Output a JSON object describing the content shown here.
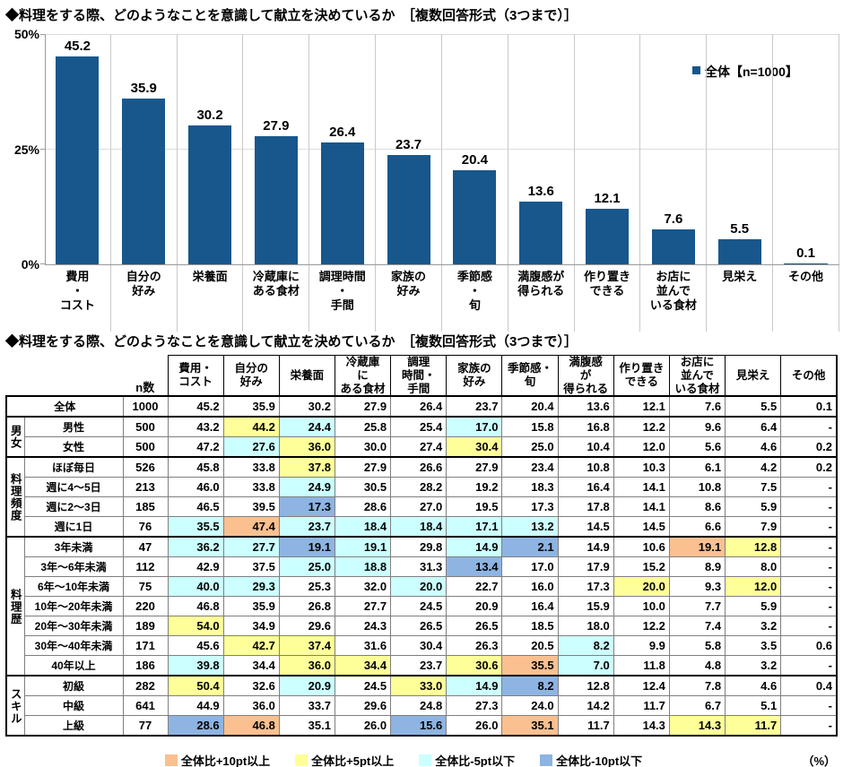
{
  "chart_data": {
    "type": "bar",
    "title": "◆料理をする際、どのようなことを意識して献立を決めているか　［複数回答形式（3つまで）］",
    "legend": "全体【n=1000】",
    "bar_color": "#17578c",
    "ylim": [
      0,
      50
    ],
    "yticks": [
      50,
      25,
      0
    ],
    "grid": "vertical category separators, light horizontal lines at 25% and 50%",
    "categories": [
      "費用・コスト",
      "自分の好み",
      "栄養面",
      "冷蔵庫にある食材",
      "調理時間・手間",
      "家族の好み",
      "季節感・旬",
      "満腹感が得られる",
      "作り置きできる",
      "お店に並んでいる食材",
      "見栄え",
      "その他"
    ],
    "category_lines": [
      [
        "費用",
        "・",
        "コスト"
      ],
      [
        "自分の",
        "好み"
      ],
      [
        "栄養面"
      ],
      [
        "冷蔵庫に",
        "ある食材"
      ],
      [
        "調理時間",
        "・",
        "手間"
      ],
      [
        "家族の",
        "好み"
      ],
      [
        "季節感",
        "・",
        "旬"
      ],
      [
        "満腹感が",
        "得られる"
      ],
      [
        "作り置き",
        "できる"
      ],
      [
        "お店に",
        "並んで",
        "いる食材"
      ],
      [
        "見栄え"
      ],
      [
        "その他"
      ]
    ],
    "values": [
      45.2,
      35.9,
      30.2,
      27.9,
      26.4,
      23.7,
      20.4,
      13.6,
      12.1,
      7.6,
      5.5,
      0.1
    ]
  },
  "table": {
    "title": "◆料理をする際、どのようなことを意識して献立を決めているか　［複数回答形式（3つまで）］",
    "n_header": "n数",
    "col_headers": [
      [
        "費用・",
        "コスト"
      ],
      [
        "自分の",
        "好み"
      ],
      [
        "栄養面"
      ],
      [
        "冷蔵庫",
        "に",
        "ある食材"
      ],
      [
        "調理",
        "時間・",
        "手間"
      ],
      [
        "家族の",
        "好み"
      ],
      [
        "季節感・",
        "旬"
      ],
      [
        "満腹感",
        "が",
        "得られる"
      ],
      [
        "作り置き",
        "できる"
      ],
      [
        "お店に",
        "並んで",
        "いる食材"
      ],
      [
        "見栄え"
      ],
      [
        "その他"
      ]
    ],
    "groups": [
      {
        "label": "",
        "rows": [
          {
            "label": "全体",
            "n": "1000",
            "values": [
              "45.2",
              "35.9",
              "30.2",
              "27.9",
              "26.4",
              "23.7",
              "20.4",
              "13.6",
              "12.1",
              "7.6",
              "5.5",
              "0.1"
            ],
            "marks": [
              "",
              "",
              "",
              "",
              "",
              "",
              "",
              "",
              "",
              "",
              "",
              ""
            ]
          }
        ]
      },
      {
        "label": "男女",
        "rows": [
          {
            "label": "男性",
            "n": "500",
            "values": [
              "43.2",
              "44.2",
              "24.4",
              "25.8",
              "25.4",
              "17.0",
              "15.8",
              "16.8",
              "12.2",
              "9.6",
              "6.4",
              "-"
            ],
            "marks": [
              "",
              "y",
              "c",
              "",
              "",
              "c",
              "",
              "",
              "",
              "",
              "",
              ""
            ]
          },
          {
            "label": "女性",
            "n": "500",
            "values": [
              "47.2",
              "27.6",
              "36.0",
              "30.0",
              "27.4",
              "30.4",
              "25.0",
              "10.4",
              "12.0",
              "5.6",
              "4.6",
              "0.2"
            ],
            "marks": [
              "",
              "c",
              "y",
              "",
              "",
              "y",
              "",
              "",
              "",
              "",
              "",
              ""
            ]
          }
        ]
      },
      {
        "label": "料理頻度",
        "rows": [
          {
            "label": "ほぼ毎日",
            "n": "526",
            "values": [
              "45.8",
              "33.8",
              "37.8",
              "27.9",
              "26.6",
              "27.9",
              "23.4",
              "10.8",
              "10.3",
              "6.1",
              "4.2",
              "0.2"
            ],
            "marks": [
              "",
              "",
              "y",
              "",
              "",
              "",
              "",
              "",
              "",
              "",
              "",
              ""
            ]
          },
          {
            "label": "週に4〜5日",
            "n": "213",
            "values": [
              "46.0",
              "33.8",
              "24.9",
              "30.5",
              "28.2",
              "19.2",
              "18.3",
              "16.4",
              "14.1",
              "10.8",
              "7.5",
              "-"
            ],
            "marks": [
              "",
              "",
              "c",
              "",
              "",
              "",
              "",
              "",
              "",
              "",
              "",
              ""
            ]
          },
          {
            "label": "週に2〜3日",
            "n": "185",
            "values": [
              "46.5",
              "39.5",
              "17.3",
              "28.6",
              "27.0",
              "19.5",
              "17.3",
              "17.8",
              "14.1",
              "8.6",
              "5.9",
              "-"
            ],
            "marks": [
              "",
              "",
              "b",
              "",
              "",
              "",
              "",
              "",
              "",
              "",
              "",
              ""
            ]
          },
          {
            "label": "週に1日",
            "n": "76",
            "values": [
              "35.5",
              "47.4",
              "23.7",
              "18.4",
              "18.4",
              "17.1",
              "13.2",
              "14.5",
              "14.5",
              "6.6",
              "7.9",
              "-"
            ],
            "marks": [
              "c",
              "o",
              "c",
              "c",
              "c",
              "c",
              "c",
              "",
              "",
              "",
              "",
              ""
            ]
          }
        ]
      },
      {
        "label": "料理歴",
        "rows": [
          {
            "label": "3年未満",
            "n": "47",
            "values": [
              "36.2",
              "27.7",
              "19.1",
              "19.1",
              "29.8",
              "14.9",
              "2.1",
              "14.9",
              "10.6",
              "19.1",
              "12.8",
              "-"
            ],
            "marks": [
              "c",
              "c",
              "b",
              "c",
              "",
              "c",
              "b",
              "",
              "",
              "o",
              "y",
              ""
            ]
          },
          {
            "label": "3年〜6年未満",
            "n": "112",
            "values": [
              "42.9",
              "37.5",
              "25.0",
              "18.8",
              "31.3",
              "13.4",
              "17.0",
              "17.9",
              "15.2",
              "8.9",
              "8.0",
              "-"
            ],
            "marks": [
              "",
              "",
              "c",
              "c",
              "",
              "b",
              "",
              "",
              "",
              "",
              "",
              ""
            ]
          },
          {
            "label": "6年〜10年未満",
            "n": "75",
            "values": [
              "40.0",
              "29.3",
              "25.3",
              "32.0",
              "20.0",
              "22.7",
              "16.0",
              "17.3",
              "20.0",
              "9.3",
              "12.0",
              "-"
            ],
            "marks": [
              "c",
              "c",
              "",
              "",
              "c",
              "",
              "",
              "",
              "y",
              "",
              "y",
              ""
            ]
          },
          {
            "label": "10年〜20年未満",
            "n": "220",
            "values": [
              "46.8",
              "35.9",
              "26.8",
              "27.7",
              "24.5",
              "20.9",
              "16.4",
              "15.9",
              "10.0",
              "7.7",
              "5.9",
              "-"
            ],
            "marks": [
              "",
              "",
              "",
              "",
              "",
              "",
              "",
              "",
              "",
              "",
              "",
              ""
            ]
          },
          {
            "label": "20年〜30年未満",
            "n": "189",
            "values": [
              "54.0",
              "34.9",
              "29.6",
              "24.3",
              "26.5",
              "26.5",
              "18.5",
              "18.0",
              "12.2",
              "7.4",
              "3.2",
              "-"
            ],
            "marks": [
              "y",
              "",
              "",
              "",
              "",
              "",
              "",
              "",
              "",
              "",
              "",
              ""
            ]
          },
          {
            "label": "30年〜40年未満",
            "n": "171",
            "values": [
              "45.6",
              "42.7",
              "37.4",
              "31.6",
              "30.4",
              "26.3",
              "20.5",
              "8.2",
              "9.9",
              "5.8",
              "3.5",
              "0.6"
            ],
            "marks": [
              "",
              "y",
              "y",
              "",
              "",
              "",
              "",
              "c",
              "",
              "",
              "",
              ""
            ]
          },
          {
            "label": "40年以上",
            "n": "186",
            "values": [
              "39.8",
              "34.4",
              "36.0",
              "34.4",
              "23.7",
              "30.6",
              "35.5",
              "7.0",
              "11.8",
              "4.8",
              "3.2",
              "-"
            ],
            "marks": [
              "c",
              "",
              "y",
              "y",
              "",
              "y",
              "o",
              "c",
              "",
              "",
              "",
              ""
            ]
          }
        ]
      },
      {
        "label": "スキル",
        "rows": [
          {
            "label": "初級",
            "n": "282",
            "values": [
              "50.4",
              "32.6",
              "20.9",
              "24.5",
              "33.0",
              "14.9",
              "8.2",
              "12.8",
              "12.4",
              "7.8",
              "4.6",
              "0.4"
            ],
            "marks": [
              "y",
              "",
              "c",
              "",
              "y",
              "c",
              "b",
              "",
              "",
              "",
              "",
              ""
            ]
          },
          {
            "label": "中級",
            "n": "641",
            "values": [
              "44.9",
              "36.0",
              "33.7",
              "29.6",
              "24.8",
              "27.3",
              "24.0",
              "14.2",
              "11.7",
              "6.7",
              "5.1",
              "-"
            ],
            "marks": [
              "",
              "",
              "",
              "",
              "",
              "",
              "",
              "",
              "",
              "",
              "",
              ""
            ]
          },
          {
            "label": "上級",
            "n": "77",
            "values": [
              "28.6",
              "46.8",
              "35.1",
              "26.0",
              "15.6",
              "26.0",
              "35.1",
              "11.7",
              "14.3",
              "14.3",
              "11.7",
              "-"
            ],
            "marks": [
              "b",
              "o",
              "",
              "",
              "b",
              "",
              "o",
              "",
              "",
              "y",
              "y",
              ""
            ]
          }
        ]
      }
    ],
    "legend": [
      {
        "mark": "o",
        "color": "#FAC090",
        "label": "全体比+10pt以上"
      },
      {
        "mark": "y",
        "color": "#FFFF99",
        "label": "全体比+5pt以上"
      },
      {
        "mark": "c",
        "color": "#CCFFFF",
        "label": "全体比-5pt以下"
      },
      {
        "mark": "b",
        "color": "#8DB4E2",
        "label": "全体比-10pt以下"
      }
    ],
    "unit_note": "（%）"
  }
}
